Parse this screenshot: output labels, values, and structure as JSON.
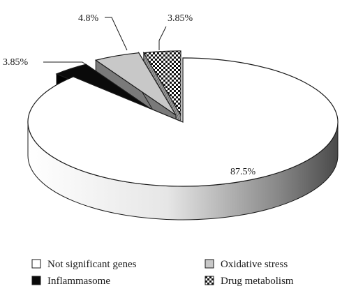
{
  "chart_data": {
    "type": "pie",
    "style": "3d-exploded",
    "categories": [
      "Not significant genes",
      "Inflammasome",
      "Oxidative stress",
      "Drug metabolism"
    ],
    "values": [
      87.5,
      3.85,
      4.8,
      3.85
    ],
    "labels": [
      "87.5%",
      "3.85%",
      "4.8%",
      "3.85%"
    ],
    "fills": [
      "white",
      "black",
      "light-gray",
      "checkerboard"
    ],
    "legend_position": "bottom",
    "title": "",
    "colors": {
      "outline": "#1a1a1a",
      "light_gray": "#c8c8c8",
      "checker_dark": "#111111"
    }
  }
}
